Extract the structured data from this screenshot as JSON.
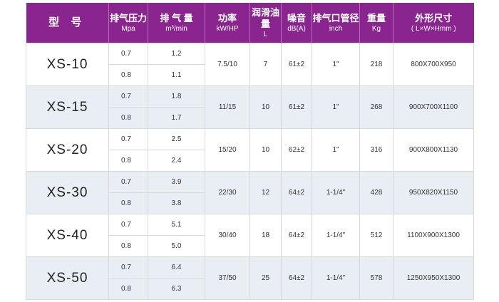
{
  "headers": [
    {
      "main": "型 号",
      "sub": ""
    },
    {
      "main": "排气压力",
      "sub": "Mpa"
    },
    {
      "main": "排 气 量",
      "sub": "m³/min"
    },
    {
      "main": "功率",
      "sub": "kW/HP"
    },
    {
      "main": "润滑油量",
      "sub": "L"
    },
    {
      "main": "噪音",
      "sub": "dB(A)"
    },
    {
      "main": "排气口管径",
      "sub": "inch"
    },
    {
      "main": "重量",
      "sub": "Kg"
    },
    {
      "main": "外形尺寸",
      "sub": "( L×W×Hmm )"
    }
  ],
  "rows": [
    {
      "model": "XS-10",
      "pressures": [
        "0.7",
        "0.8"
      ],
      "flows": [
        "1.2",
        "1.1"
      ],
      "power": "7.5/10",
      "oil": "7",
      "noise": "61±2",
      "outlet": "1\"",
      "weight": "218",
      "dimensions": "800X700X950"
    },
    {
      "model": "XS-15",
      "pressures": [
        "0.7",
        "0.8"
      ],
      "flows": [
        "1.8",
        "1.7"
      ],
      "power": "11/15",
      "oil": "10",
      "noise": "61±2",
      "outlet": "1\"",
      "weight": "268",
      "dimensions": "900X700X1100"
    },
    {
      "model": "XS-20",
      "pressures": [
        "0.7",
        "0.8"
      ],
      "flows": [
        "2.5",
        "2.4"
      ],
      "power": "15/20",
      "oil": "10",
      "noise": "62±2",
      "outlet": "1\"",
      "weight": "316",
      "dimensions": "900X800X1130"
    },
    {
      "model": "XS-30",
      "pressures": [
        "0.7",
        "0.8"
      ],
      "flows": [
        "3.9",
        "3.8"
      ],
      "power": "22/30",
      "oil": "12",
      "noise": "64±2",
      "outlet": "1-1/4\"",
      "weight": "428",
      "dimensions": "950X820X1150"
    },
    {
      "model": "XS-40",
      "pressures": [
        "0.7",
        "0.8"
      ],
      "flows": [
        "5.1",
        "5.0"
      ],
      "power": "30/40",
      "oil": "18",
      "noise": "64±2",
      "outlet": "1-1/4\"",
      "weight": "512",
      "dimensions": "1100X900X1300"
    },
    {
      "model": "XS-50",
      "pressures": [
        "0.7",
        "0.8"
      ],
      "flows": [
        "6.4",
        "6.3"
      ],
      "power": "37/50",
      "oil": "25",
      "noise": "64±2",
      "outlet": "1-1/4\"",
      "weight": "578",
      "dimensions": "1250X950X1300"
    }
  ],
  "colors": {
    "header_bg": "#8a2590",
    "header_text": "#ffffff",
    "alt_row_bg": "#e9eef5",
    "border": "#d8d8d8"
  }
}
